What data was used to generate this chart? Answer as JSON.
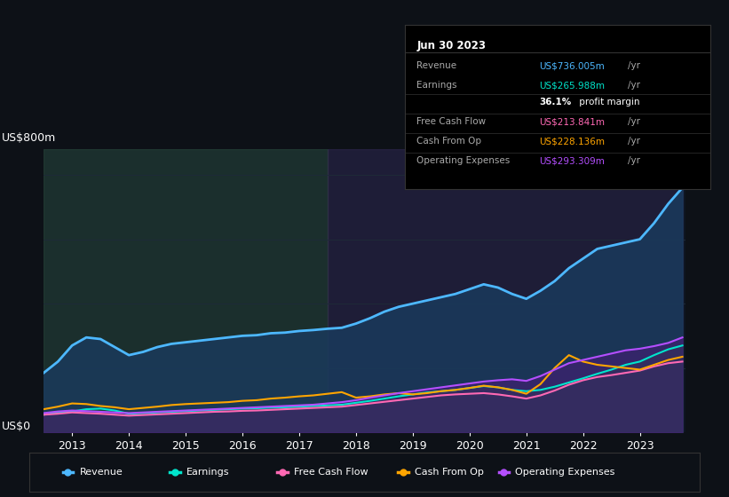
{
  "background_color": "#0d1117",
  "plot_bg_color": "#0d1520",
  "title": "Jun 30 2023",
  "ylabel_top": "US$800m",
  "ylabel_bottom": "US$0",
  "xmin": 2012.5,
  "xmax": 2023.8,
  "ymin": 0,
  "ymax": 870,
  "grid_color": "#1e2a38",
  "tooltip": {
    "title": "Jun 30 2023",
    "rows": [
      {
        "label": "Revenue",
        "value": "US$736.005m /yr",
        "color": "#4db8ff"
      },
      {
        "label": "Earnings",
        "value": "US$265.988m /yr",
        "color": "#00e5cc"
      },
      {
        "label": "",
        "value": "36.1% profit margin",
        "color": "#ffffff"
      },
      {
        "label": "Free Cash Flow",
        "value": "US$213.841m /yr",
        "color": "#ff69b4"
      },
      {
        "label": "Cash From Op",
        "value": "US$228.136m /yr",
        "color": "#ffa500"
      },
      {
        "label": "Operating Expenses",
        "value": "US$293.309m /yr",
        "color": "#b44fff"
      }
    ]
  },
  "legend": [
    {
      "label": "Revenue",
      "color": "#4db8ff"
    },
    {
      "label": "Earnings",
      "color": "#00e5cc"
    },
    {
      "label": "Free Cash Flow",
      "color": "#ff69b4"
    },
    {
      "label": "Cash From Op",
      "color": "#ffa500"
    },
    {
      "label": "Operating Expenses",
      "color": "#b44fff"
    }
  ],
  "revenue": {
    "x": [
      2012.5,
      2012.75,
      2013.0,
      2013.25,
      2013.5,
      2013.75,
      2014.0,
      2014.25,
      2014.5,
      2014.75,
      2015.0,
      2015.25,
      2015.5,
      2015.75,
      2016.0,
      2016.25,
      2016.5,
      2016.75,
      2017.0,
      2017.25,
      2017.5,
      2017.75,
      2018.0,
      2018.25,
      2018.5,
      2018.75,
      2019.0,
      2019.25,
      2019.5,
      2019.75,
      2020.0,
      2020.25,
      2020.5,
      2020.75,
      2021.0,
      2021.25,
      2021.5,
      2021.75,
      2022.0,
      2022.25,
      2022.5,
      2022.75,
      2023.0,
      2023.25,
      2023.5,
      2023.75
    ],
    "y": [
      185,
      220,
      270,
      295,
      290,
      265,
      240,
      250,
      265,
      275,
      280,
      285,
      290,
      295,
      300,
      302,
      308,
      310,
      315,
      318,
      322,
      325,
      338,
      355,
      375,
      390,
      400,
      410,
      420,
      430,
      445,
      460,
      450,
      430,
      415,
      440,
      470,
      510,
      540,
      570,
      580,
      590,
      600,
      650,
      710,
      760
    ],
    "color": "#4db8ff",
    "fill_color": "#1a3a5c",
    "linewidth": 2.0
  },
  "earnings": {
    "x": [
      2012.5,
      2012.75,
      2013.0,
      2013.25,
      2013.5,
      2013.75,
      2014.0,
      2014.25,
      2014.5,
      2014.75,
      2015.0,
      2015.25,
      2015.5,
      2015.75,
      2016.0,
      2016.25,
      2016.5,
      2016.75,
      2017.0,
      2017.25,
      2017.5,
      2017.75,
      2018.0,
      2018.25,
      2018.5,
      2018.75,
      2019.0,
      2019.25,
      2019.5,
      2019.75,
      2020.0,
      2020.25,
      2020.5,
      2020.75,
      2021.0,
      2021.25,
      2021.5,
      2021.75,
      2022.0,
      2022.25,
      2022.5,
      2022.75,
      2023.0,
      2023.25,
      2023.5,
      2023.75
    ],
    "y": [
      55,
      62,
      65,
      72,
      74,
      68,
      58,
      60,
      62,
      64,
      66,
      68,
      70,
      72,
      74,
      75,
      77,
      78,
      80,
      82,
      84,
      86,
      92,
      98,
      105,
      112,
      118,
      124,
      128,
      132,
      138,
      144,
      140,
      132,
      128,
      132,
      142,
      155,
      168,
      182,
      195,
      210,
      220,
      240,
      258,
      270
    ],
    "color": "#00e5cc",
    "fill_color": "#1a4a3a",
    "linewidth": 1.5
  },
  "free_cash_flow": {
    "x": [
      2012.5,
      2012.75,
      2013.0,
      2013.25,
      2013.5,
      2013.75,
      2014.0,
      2014.25,
      2014.5,
      2014.75,
      2015.0,
      2015.25,
      2015.5,
      2015.75,
      2016.0,
      2016.25,
      2016.5,
      2016.75,
      2017.0,
      2017.25,
      2017.5,
      2017.75,
      2018.0,
      2018.25,
      2018.5,
      2018.75,
      2019.0,
      2019.25,
      2019.5,
      2019.75,
      2020.0,
      2020.25,
      2020.5,
      2020.75,
      2021.0,
      2021.25,
      2021.5,
      2021.75,
      2022.0,
      2022.25,
      2022.5,
      2022.75,
      2023.0,
      2023.25,
      2023.5,
      2023.75
    ],
    "y": [
      55,
      58,
      62,
      60,
      58,
      55,
      52,
      54,
      56,
      58,
      60,
      62,
      64,
      65,
      67,
      68,
      70,
      72,
      74,
      76,
      78,
      80,
      85,
      90,
      95,
      100,
      105,
      110,
      115,
      118,
      120,
      122,
      118,
      112,
      105,
      115,
      130,
      148,
      162,
      172,
      178,
      185,
      192,
      205,
      215,
      220
    ],
    "color": "#ff69b4",
    "fill_color": "#5a1a3a",
    "linewidth": 1.5
  },
  "cash_from_op": {
    "x": [
      2012.5,
      2012.75,
      2013.0,
      2013.25,
      2013.5,
      2013.75,
      2014.0,
      2014.25,
      2014.5,
      2014.75,
      2015.0,
      2015.25,
      2015.5,
      2015.75,
      2016.0,
      2016.25,
      2016.5,
      2016.75,
      2017.0,
      2017.25,
      2017.5,
      2017.75,
      2018.0,
      2018.25,
      2018.5,
      2018.75,
      2019.0,
      2019.25,
      2019.5,
      2019.75,
      2020.0,
      2020.25,
      2020.5,
      2020.75,
      2021.0,
      2021.25,
      2021.5,
      2021.75,
      2022.0,
      2022.25,
      2022.5,
      2022.75,
      2023.0,
      2023.25,
      2023.5,
      2023.75
    ],
    "y": [
      72,
      80,
      90,
      88,
      82,
      78,
      72,
      76,
      80,
      85,
      88,
      90,
      92,
      94,
      98,
      100,
      105,
      108,
      112,
      115,
      120,
      125,
      108,
      112,
      118,
      122,
      118,
      122,
      128,
      132,
      138,
      145,
      140,
      132,
      120,
      150,
      200,
      240,
      220,
      210,
      205,
      200,
      195,
      210,
      225,
      235
    ],
    "color": "#ffa500",
    "fill_color": "#3a2a00",
    "linewidth": 1.5
  },
  "op_expenses": {
    "x": [
      2012.5,
      2012.75,
      2013.0,
      2013.25,
      2013.5,
      2013.75,
      2014.0,
      2014.25,
      2014.5,
      2014.75,
      2015.0,
      2015.25,
      2015.5,
      2015.75,
      2016.0,
      2016.25,
      2016.5,
      2016.75,
      2017.0,
      2017.25,
      2017.5,
      2017.75,
      2018.0,
      2018.25,
      2018.5,
      2018.75,
      2019.0,
      2019.25,
      2019.5,
      2019.75,
      2020.0,
      2020.25,
      2020.5,
      2020.75,
      2021.0,
      2021.25,
      2021.5,
      2021.75,
      2022.0,
      2022.25,
      2022.5,
      2022.75,
      2023.0,
      2023.25,
      2023.5,
      2023.75
    ],
    "y": [
      60,
      65,
      68,
      66,
      64,
      62,
      60,
      62,
      64,
      66,
      68,
      70,
      72,
      74,
      76,
      78,
      80,
      82,
      84,
      86,
      90,
      94,
      100,
      108,
      115,
      122,
      128,
      134,
      140,
      146,
      152,
      158,
      162,
      165,
      160,
      175,
      195,
      215,
      225,
      235,
      245,
      255,
      260,
      268,
      278,
      295
    ],
    "color": "#b44fff",
    "fill_color": "#3a1a5a",
    "linewidth": 1.5
  },
  "shaded_regions": [
    {
      "xstart": 2012.5,
      "xend": 2017.5,
      "color": "#2a4a3a",
      "alpha": 0.5
    },
    {
      "xstart": 2017.5,
      "xend": 2023.75,
      "color": "#3a2a5a",
      "alpha": 0.4
    }
  ],
  "gridlines_y": [
    0,
    200,
    400,
    600,
    800
  ],
  "xticks": [
    2013,
    2014,
    2015,
    2016,
    2017,
    2018,
    2019,
    2020,
    2021,
    2022,
    2023
  ]
}
